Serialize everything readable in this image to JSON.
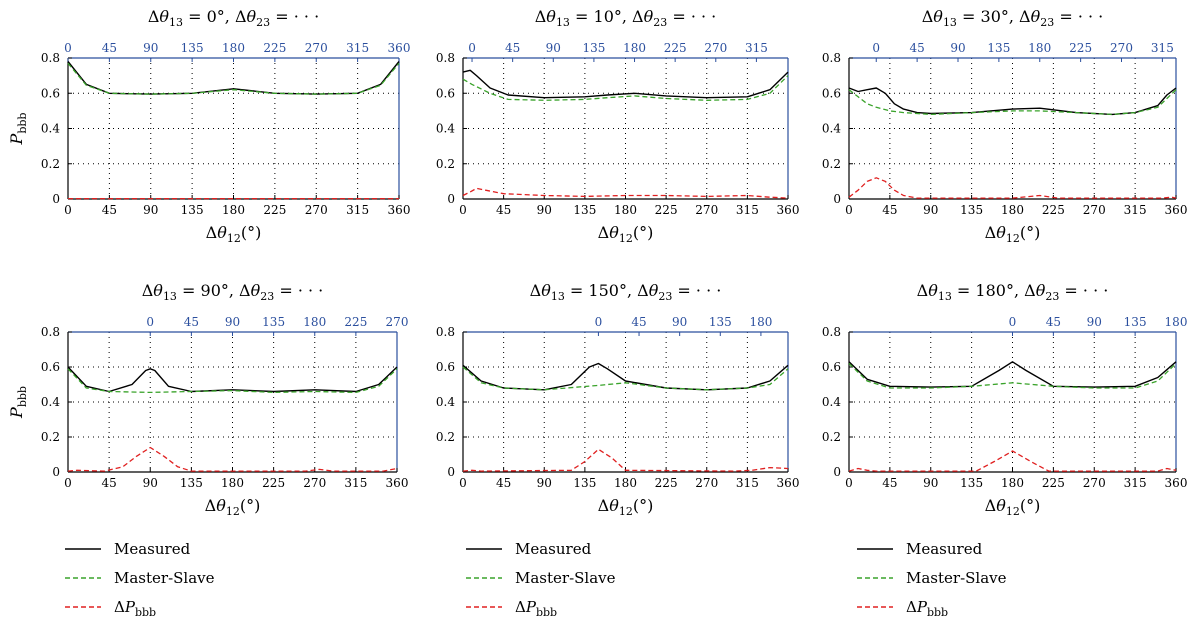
{
  "legend_labels": {
    "measured": "Measured",
    "master_slave": "Master-Slave",
    "delta": "ΔP",
    "delta_sub": "bbb"
  },
  "colors": {
    "measured": "#000000",
    "master_slave": "#3aa32b",
    "delta": "#e02020",
    "top_axis": "#2b4f9e",
    "grid": "#000000"
  },
  "chart_data": [
    {
      "type": "line",
      "title": "Δθ13 = 0°, Δθ23 = · · ·",
      "xlabel": "Δθ12(°)",
      "ylabel": "Pbbb",
      "xlim": [
        0,
        360
      ],
      "ylim": [
        0,
        0.8
      ],
      "x_ticks": [
        "0",
        "45",
        "90",
        "135",
        "180",
        "225",
        "270",
        "315",
        "360"
      ],
      "y_ticks": [
        "0",
        "0.2",
        "0.4",
        "0.6",
        "0.8"
      ],
      "top_axis": {
        "labels": [
          "0",
          "45",
          "90",
          "135",
          "180",
          "225",
          "270",
          "315",
          "360"
        ],
        "positions": [
          0,
          45,
          90,
          135,
          180,
          225,
          270,
          315,
          360
        ]
      },
      "grid": true,
      "series": [
        {
          "name": "Measured",
          "x": [
            0,
            20,
            45,
            90,
            135,
            180,
            225,
            270,
            315,
            340,
            360
          ],
          "values": [
            0.78,
            0.65,
            0.6,
            0.595,
            0.6,
            0.625,
            0.6,
            0.595,
            0.6,
            0.65,
            0.78
          ]
        },
        {
          "name": "Master-Slave",
          "x": [
            0,
            20,
            45,
            90,
            135,
            180,
            225,
            270,
            315,
            340,
            360
          ],
          "values": [
            0.77,
            0.645,
            0.6,
            0.595,
            0.6,
            0.62,
            0.6,
            0.595,
            0.6,
            0.645,
            0.77
          ]
        },
        {
          "name": "ΔPbbb",
          "x": [
            0,
            90,
            180,
            270,
            360
          ],
          "values": [
            0.002,
            0.002,
            0.002,
            0.002,
            0.002
          ]
        }
      ]
    },
    {
      "type": "line",
      "title": "Δθ13 = 10°, Δθ23 = · · ·",
      "xlabel": "Δθ12(°)",
      "ylabel": "",
      "xlim": [
        0,
        360
      ],
      "ylim": [
        0,
        0.8
      ],
      "x_ticks": [
        "0",
        "45",
        "90",
        "135",
        "180",
        "225",
        "270",
        "315",
        "360"
      ],
      "y_ticks": [
        "0",
        "0.2",
        "0.4",
        "0.6",
        "0.8"
      ],
      "top_axis": {
        "labels": [
          "0",
          "45",
          "90",
          "135",
          "180",
          "225",
          "270",
          "315"
        ],
        "positions": [
          10,
          55,
          100,
          145,
          190,
          235,
          280,
          325
        ]
      },
      "grid": true,
      "series": [
        {
          "name": "Measured",
          "x": [
            0,
            8,
            15,
            30,
            50,
            90,
            135,
            160,
            190,
            225,
            270,
            315,
            340,
            360
          ],
          "values": [
            0.72,
            0.73,
            0.7,
            0.63,
            0.59,
            0.575,
            0.58,
            0.59,
            0.6,
            0.585,
            0.575,
            0.58,
            0.62,
            0.72
          ]
        },
        {
          "name": "Master-Slave",
          "x": [
            0,
            10,
            30,
            50,
            90,
            135,
            160,
            190,
            225,
            270,
            315,
            340,
            360
          ],
          "values": [
            0.68,
            0.65,
            0.6,
            0.565,
            0.56,
            0.565,
            0.575,
            0.585,
            0.57,
            0.56,
            0.565,
            0.6,
            0.7
          ]
        },
        {
          "name": "ΔPbbb",
          "x": [
            0,
            8,
            15,
            25,
            45,
            90,
            135,
            180,
            225,
            270,
            315,
            340,
            360
          ],
          "values": [
            0.02,
            0.04,
            0.06,
            0.05,
            0.03,
            0.02,
            0.015,
            0.02,
            0.02,
            0.015,
            0.02,
            0.01,
            0.005
          ]
        }
      ]
    },
    {
      "type": "line",
      "title": "Δθ13 = 30°, Δθ23 = · · ·",
      "xlabel": "Δθ12(°)",
      "ylabel": "",
      "xlim": [
        0,
        360
      ],
      "ylim": [
        0,
        0.8
      ],
      "x_ticks": [
        "0",
        "45",
        "90",
        "135",
        "180",
        "225",
        "270",
        "315",
        "360"
      ],
      "y_ticks": [
        "0",
        "0.2",
        "0.4",
        "0.6",
        "0.8"
      ],
      "top_axis": {
        "labels": [
          "0",
          "45",
          "90",
          "135",
          "180",
          "225",
          "270",
          "315"
        ],
        "positions": [
          30,
          75,
          120,
          165,
          210,
          255,
          300,
          345
        ]
      },
      "grid": true,
      "series": [
        {
          "name": "Measured",
          "x": [
            0,
            10,
            20,
            30,
            40,
            50,
            60,
            75,
            90,
            135,
            180,
            210,
            250,
            290,
            315,
            340,
            350,
            360
          ],
          "values": [
            0.63,
            0.61,
            0.62,
            0.63,
            0.6,
            0.54,
            0.51,
            0.49,
            0.485,
            0.49,
            0.51,
            0.515,
            0.49,
            0.48,
            0.49,
            0.53,
            0.59,
            0.63
          ]
        },
        {
          "name": "Master-Slave",
          "x": [
            0,
            10,
            20,
            30,
            45,
            60,
            90,
            135,
            180,
            210,
            250,
            290,
            315,
            340,
            350,
            360
          ],
          "values": [
            0.62,
            0.58,
            0.54,
            0.52,
            0.5,
            0.49,
            0.48,
            0.49,
            0.5,
            0.5,
            0.49,
            0.48,
            0.49,
            0.52,
            0.57,
            0.62
          ]
        },
        {
          "name": "ΔPbbb",
          "x": [
            0,
            10,
            20,
            30,
            40,
            50,
            60,
            75,
            180,
            210,
            230,
            345,
            355,
            360
          ],
          "values": [
            0.01,
            0.05,
            0.1,
            0.12,
            0.1,
            0.05,
            0.02,
            0.005,
            0.005,
            0.02,
            0.005,
            0.005,
            0.01,
            0.005
          ]
        }
      ]
    },
    {
      "type": "line",
      "title": "Δθ13 = 90°, Δθ23 = · · ·",
      "xlabel": "Δθ12(°)",
      "ylabel": "Pbbb",
      "xlim": [
        0,
        360
      ],
      "ylim": [
        0,
        0.8
      ],
      "x_ticks": [
        "0",
        "45",
        "90",
        "135",
        "180",
        "225",
        "270",
        "315",
        "360"
      ],
      "y_ticks": [
        "0",
        "0.2",
        "0.4",
        "0.6",
        "0.8"
      ],
      "top_axis": {
        "labels": [
          "0",
          "45",
          "90",
          "135",
          "180",
          "225",
          "270"
        ],
        "positions": [
          90,
          135,
          180,
          225,
          270,
          315,
          360
        ]
      },
      "grid": true,
      "series": [
        {
          "name": "Measured",
          "x": [
            0,
            20,
            45,
            70,
            85,
            90,
            95,
            110,
            135,
            180,
            225,
            270,
            315,
            340,
            360
          ],
          "values": [
            0.6,
            0.49,
            0.46,
            0.5,
            0.58,
            0.59,
            0.58,
            0.49,
            0.46,
            0.47,
            0.46,
            0.47,
            0.46,
            0.5,
            0.6
          ]
        },
        {
          "name": "Master-Slave",
          "x": [
            0,
            20,
            45,
            90,
            135,
            180,
            225,
            270,
            315,
            340,
            360
          ],
          "values": [
            0.59,
            0.48,
            0.46,
            0.455,
            0.46,
            0.465,
            0.455,
            0.46,
            0.455,
            0.49,
            0.59
          ]
        },
        {
          "name": "ΔPbbb",
          "x": [
            0,
            10,
            40,
            60,
            75,
            90,
            105,
            120,
            135,
            260,
            275,
            290,
            345,
            360
          ],
          "values": [
            0.005,
            0.01,
            0.005,
            0.03,
            0.09,
            0.14,
            0.09,
            0.03,
            0.005,
            0.005,
            0.015,
            0.005,
            0.005,
            0.02
          ]
        }
      ]
    },
    {
      "type": "line",
      "title": "Δθ13 = 150°, Δθ23 = · · ·",
      "xlabel": "Δθ12(°)",
      "ylabel": "",
      "xlim": [
        0,
        360
      ],
      "ylim": [
        0,
        0.8
      ],
      "x_ticks": [
        "0",
        "45",
        "90",
        "135",
        "180",
        "225",
        "270",
        "315",
        "360"
      ],
      "y_ticks": [
        "0",
        "0.2",
        "0.4",
        "0.6",
        "0.8"
      ],
      "top_axis": {
        "labels": [
          "0",
          "45",
          "90",
          "135",
          "180"
        ],
        "positions": [
          150,
          195,
          240,
          285,
          330
        ]
      },
      "grid": true,
      "series": [
        {
          "name": "Measured",
          "x": [
            0,
            20,
            45,
            90,
            120,
            140,
            150,
            160,
            180,
            225,
            270,
            315,
            340,
            360
          ],
          "values": [
            0.61,
            0.52,
            0.48,
            0.47,
            0.5,
            0.6,
            0.62,
            0.59,
            0.52,
            0.48,
            0.47,
            0.48,
            0.52,
            0.61
          ]
        },
        {
          "name": "Master-Slave",
          "x": [
            0,
            20,
            45,
            90,
            150,
            180,
            225,
            270,
            315,
            340,
            360
          ],
          "values": [
            0.6,
            0.51,
            0.48,
            0.47,
            0.495,
            0.51,
            0.48,
            0.47,
            0.48,
            0.5,
            0.59
          ]
        },
        {
          "name": "ΔPbbb",
          "x": [
            0,
            10,
            20,
            120,
            135,
            150,
            165,
            180,
            300,
            320,
            340,
            360
          ],
          "values": [
            0.005,
            0.01,
            0.005,
            0.01,
            0.06,
            0.13,
            0.08,
            0.01,
            0.005,
            0.01,
            0.025,
            0.02
          ]
        }
      ]
    },
    {
      "type": "line",
      "title": "Δθ13 = 180°, Δθ23 = · · ·",
      "xlabel": "Δθ12(°)",
      "ylabel": "",
      "xlim": [
        0,
        360
      ],
      "ylim": [
        0,
        0.8
      ],
      "x_ticks": [
        "0",
        "45",
        "90",
        "135",
        "180",
        "225",
        "270",
        "315",
        "360"
      ],
      "y_ticks": [
        "0",
        "0.2",
        "0.4",
        "0.6",
        "0.8"
      ],
      "top_axis": {
        "labels": [
          "0",
          "45",
          "90",
          "135",
          "180"
        ],
        "positions": [
          180,
          225,
          270,
          315,
          360
        ]
      },
      "grid": true,
      "series": [
        {
          "name": "Measured",
          "x": [
            0,
            20,
            45,
            90,
            135,
            165,
            180,
            195,
            225,
            270,
            315,
            340,
            360
          ],
          "values": [
            0.63,
            0.53,
            0.49,
            0.485,
            0.49,
            0.58,
            0.63,
            0.58,
            0.49,
            0.485,
            0.49,
            0.54,
            0.63
          ]
        },
        {
          "name": "Master-Slave",
          "x": [
            0,
            20,
            45,
            90,
            135,
            180,
            225,
            270,
            315,
            340,
            360
          ],
          "values": [
            0.62,
            0.52,
            0.48,
            0.48,
            0.49,
            0.51,
            0.49,
            0.48,
            0.48,
            0.52,
            0.62
          ]
        },
        {
          "name": "ΔPbbb",
          "x": [
            0,
            10,
            20,
            30,
            140,
            160,
            180,
            200,
            220,
            340,
            350,
            360
          ],
          "values": [
            0.005,
            0.02,
            0.01,
            0.005,
            0.005,
            0.06,
            0.12,
            0.06,
            0.005,
            0.005,
            0.02,
            0.01
          ]
        }
      ]
    }
  ]
}
